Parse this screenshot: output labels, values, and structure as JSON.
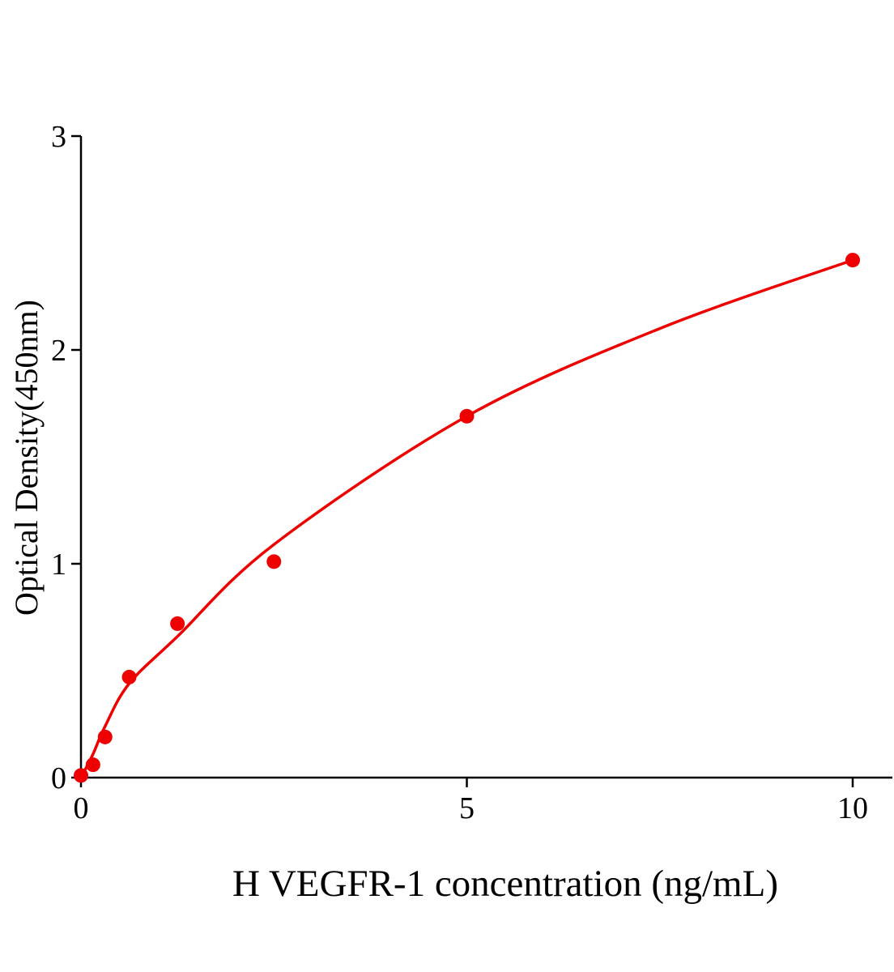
{
  "chart_data": {
    "type": "scatter",
    "title": "",
    "xlabel": "H VEGFR-1 concentration (ng/mL)",
    "ylabel": "Optical Density(450nm)",
    "xlim": [
      0,
      10.5
    ],
    "ylim": [
      0,
      3
    ],
    "xticks": [
      0,
      5,
      10
    ],
    "yticks": [
      0,
      1,
      2,
      3
    ],
    "grid": false,
    "color": "#ee0000",
    "points": {
      "x": [
        0,
        0.156,
        0.3125,
        0.625,
        1.25,
        2.5,
        5,
        10
      ],
      "y": [
        0.01,
        0.06,
        0.19,
        0.47,
        0.72,
        1.01,
        1.69,
        2.42
      ]
    },
    "fit_curve": {
      "x": [
        0,
        0.156,
        0.3125,
        0.625,
        1.25,
        2.5,
        5,
        7.5,
        10
      ],
      "y": [
        0,
        0.11,
        0.24,
        0.44,
        0.66,
        1.09,
        1.69,
        2.1,
        2.42
      ]
    }
  }
}
